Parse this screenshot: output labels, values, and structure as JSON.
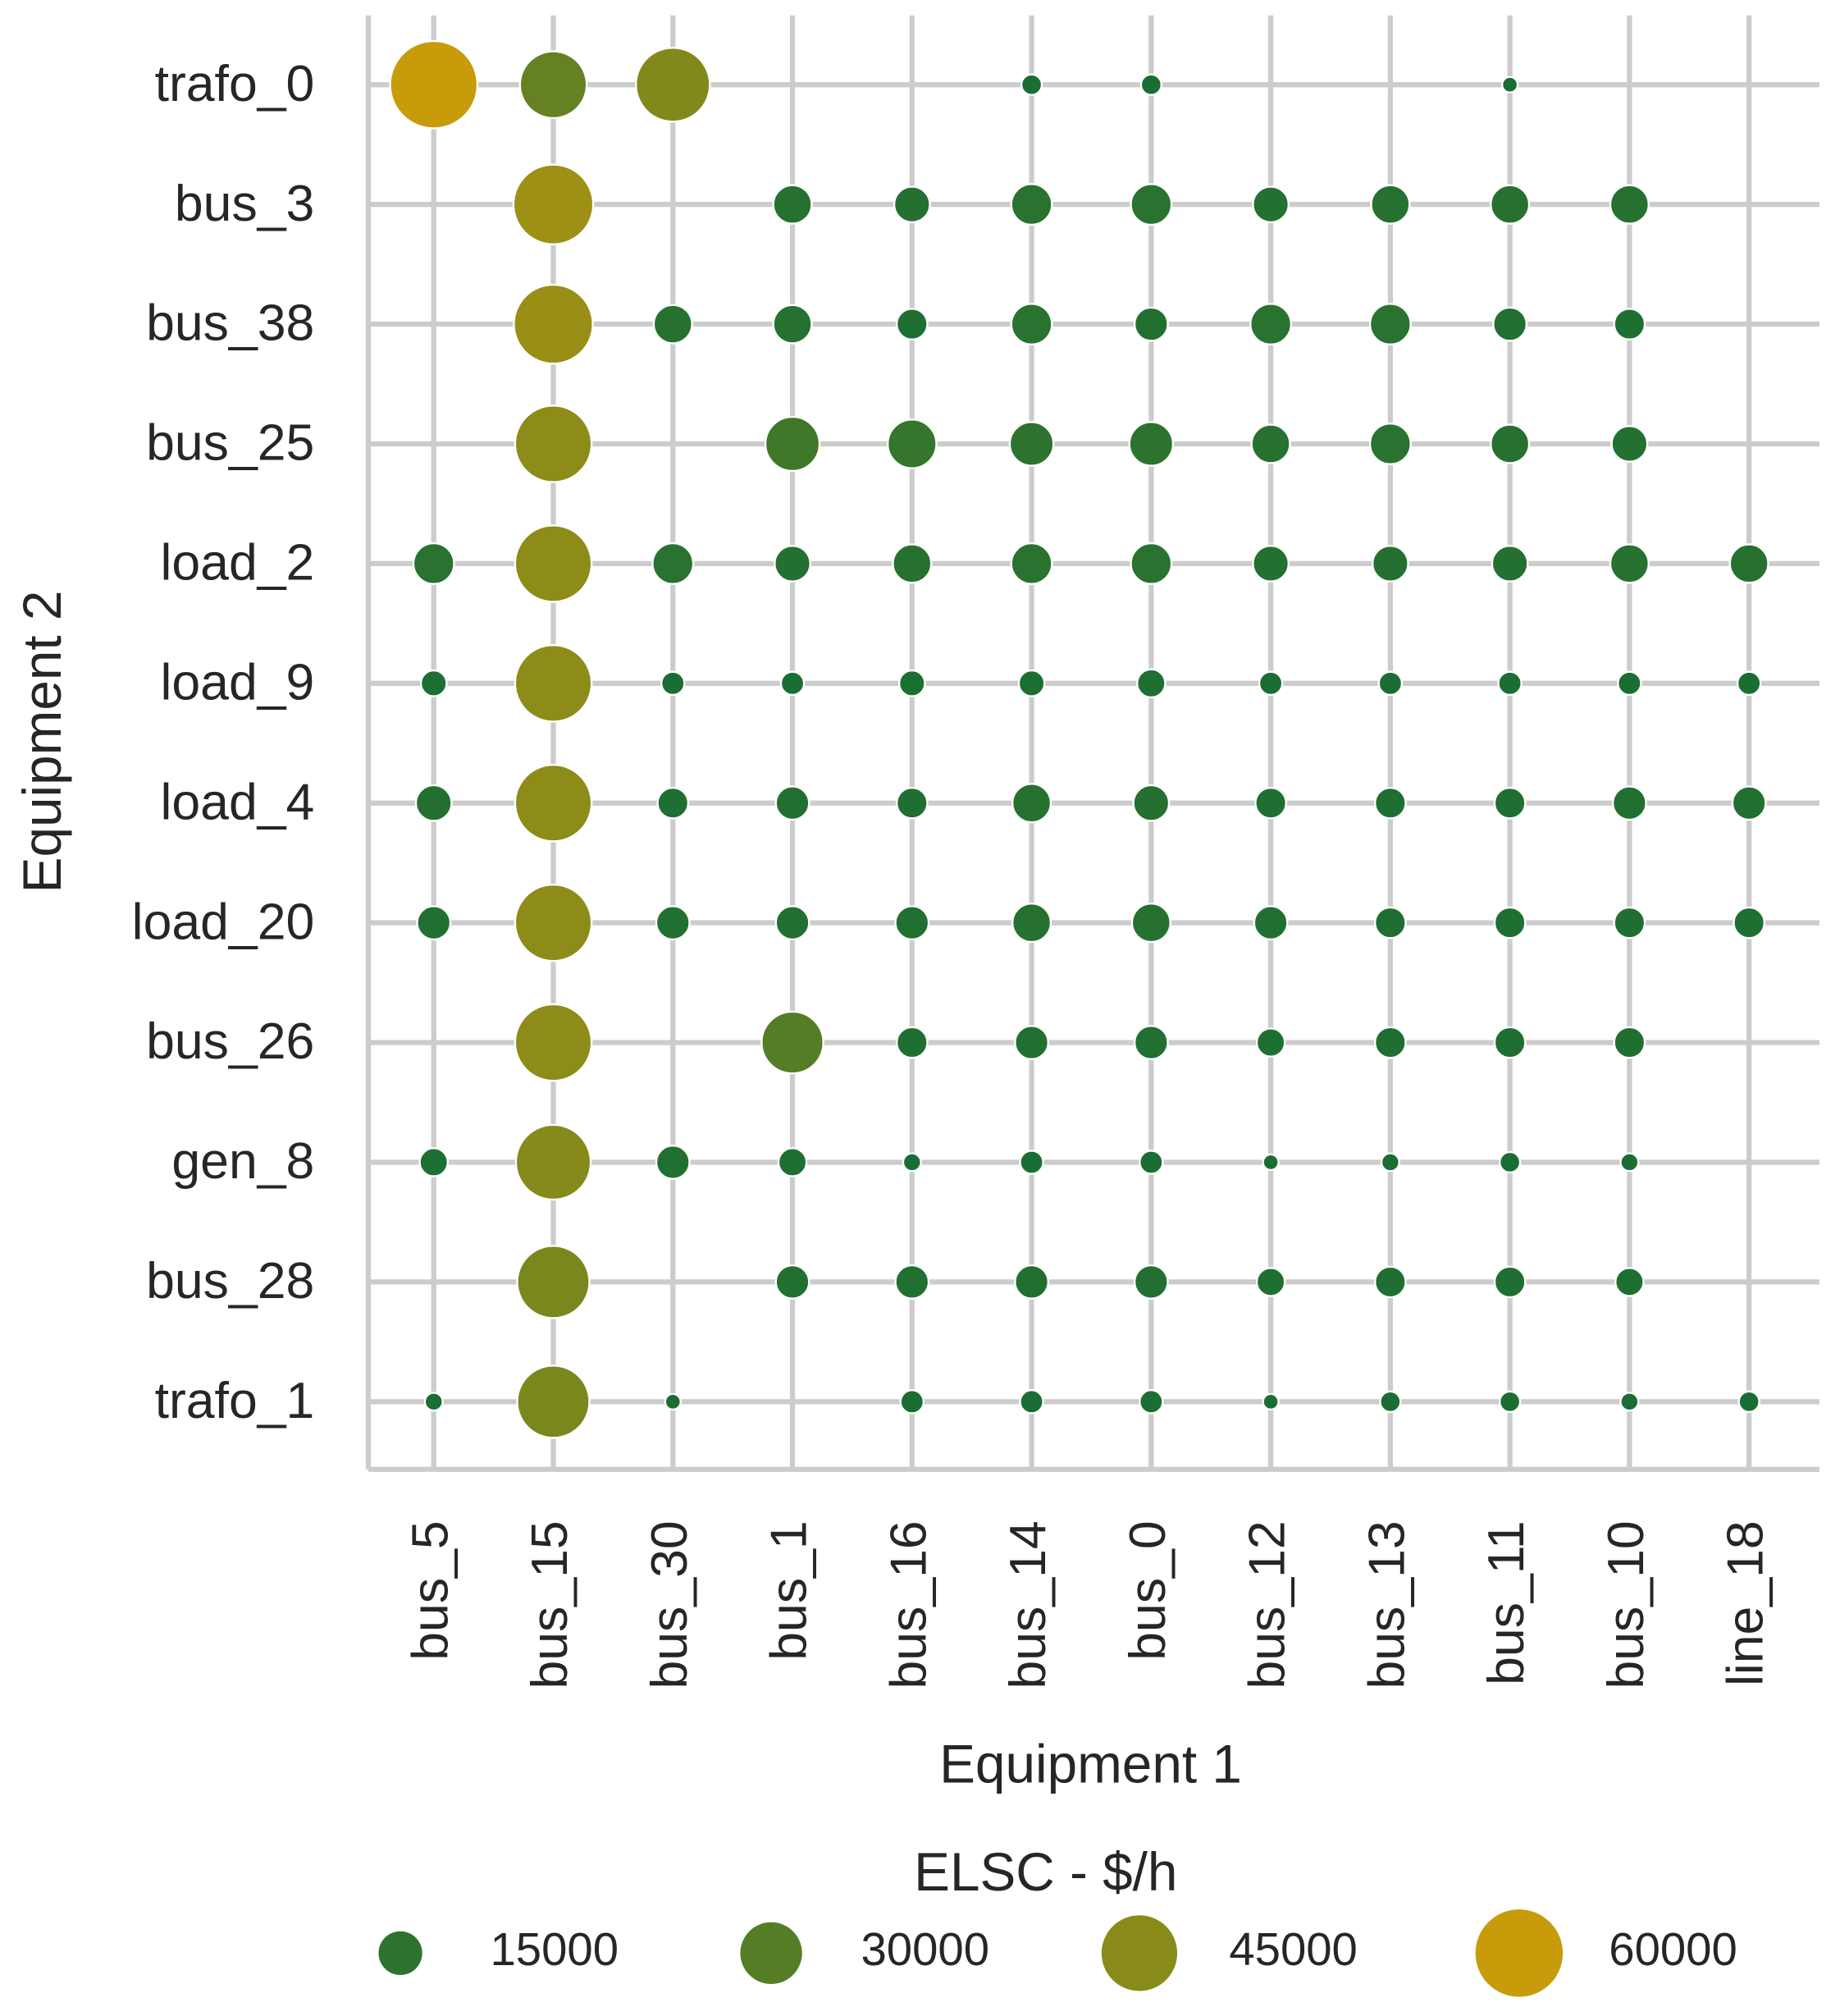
{
  "chart_data": {
    "type": "bubble-grid",
    "x_label": "Equipment 1",
    "y_label": "Equipment 2",
    "x_categories": [
      "bus_5",
      "bus_15",
      "bus_30",
      "bus_1",
      "bus_16",
      "bus_14",
      "bus_0",
      "bus_12",
      "bus_13",
      "bus_11",
      "bus_10",
      "line_18"
    ],
    "y_categories": [
      "trafo_0",
      "bus_3",
      "bus_38",
      "bus_25",
      "load_2",
      "load_9",
      "load_4",
      "load_20",
      "bus_26",
      "gen_8",
      "bus_28",
      "trafo_1"
    ],
    "values": [
      [
        60000,
        35000,
        43000,
        null,
        null,
        3300,
        3300,
        null,
        null,
        1900,
        null,
        null
      ],
      [
        null,
        50000,
        null,
        11600,
        10000,
        13000,
        13000,
        10000,
        11600,
        11600,
        11600,
        null
      ],
      [
        null,
        49000,
        11600,
        11600,
        7400,
        13000,
        8700,
        13000,
        13000,
        8700,
        7400,
        null
      ],
      [
        null,
        46000,
        null,
        23000,
        18600,
        15000,
        15000,
        11600,
        13000,
        11600,
        10000,
        null
      ],
      [
        13000,
        46000,
        13000,
        10000,
        11600,
        13000,
        13000,
        10000,
        10000,
        10000,
        11600,
        11600
      ],
      [
        5200,
        46000,
        4200,
        4200,
        5200,
        5200,
        6200,
        4200,
        4200,
        4200,
        4200,
        4200
      ],
      [
        10000,
        46000,
        7400,
        8700,
        7400,
        11600,
        10000,
        7400,
        7400,
        7400,
        8700,
        8700
      ],
      [
        8700,
        46000,
        8700,
        8700,
        8700,
        11600,
        11600,
        8700,
        7400,
        7400,
        7400,
        7400
      ],
      [
        null,
        46000,
        null,
        30000,
        7400,
        8700,
        8700,
        6200,
        7400,
        7400,
        7400,
        null
      ],
      [
        6200,
        44000,
        8700,
        6200,
        2500,
        4200,
        4200,
        1900,
        2500,
        3300,
        2500,
        null
      ],
      [
        null,
        41000,
        null,
        8700,
        8700,
        8700,
        8700,
        6200,
        7400,
        7400,
        6200,
        null
      ],
      [
        2500,
        41000,
        1900,
        null,
        4200,
        4200,
        4200,
        1900,
        3300,
        3300,
        2500,
        3300
      ]
    ],
    "colors": [
      "#1a6e33",
      "#c89b0b"
    ],
    "grid": true,
    "legend": {
      "title": "ELSC - $/h",
      "values": [
        15000,
        30000,
        45000,
        60000
      ]
    }
  }
}
